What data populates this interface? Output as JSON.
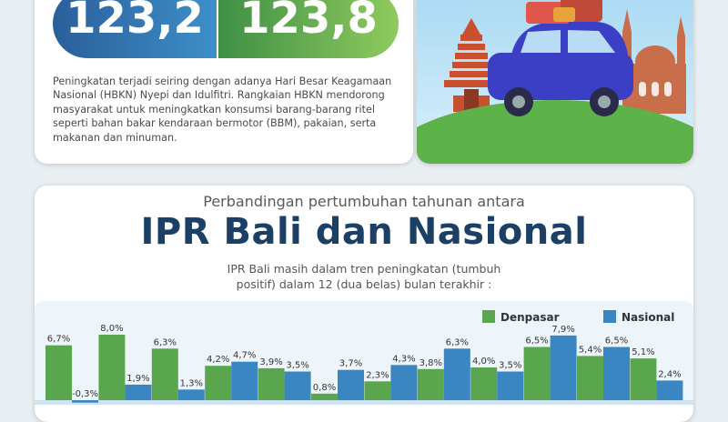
{
  "summary": {
    "value_left": "123,2",
    "value_right": "123,8",
    "description": "Peningkatan terjadi seiring dengan adanya Hari Besar Keagamaan Nasional (HBKN) Nyepi dan Idulfitri. Rangkaian HBKN mendorong masyarakat untuk meningkatkan konsumsi barang-barang ritel seperti bahan bakar kendaraan bermotor (BBM), pakaian, serta makanan dan minuman."
  },
  "illustration": {
    "icon": "travel-car-icon"
  },
  "comparison": {
    "subtitle": "Perbandingan pertumbuhan tahunan antara",
    "title": "IPR Bali dan Nasional",
    "note": "IPR Bali masih dalam tren peningkatan (tumbuh positif) dalam 12 (dua belas) bulan terakhir :"
  },
  "colors": {
    "denpasar": "#5aa64f",
    "nasional": "#3a86c2",
    "value_left_bg": "#3470aa",
    "value_right_bg": "#6fb455",
    "title": "#1c3f66"
  },
  "chart_data": {
    "type": "bar",
    "series": [
      {
        "name": "Denpasar",
        "values": [
          6.7,
          8.0,
          6.3,
          4.2,
          3.9,
          0.8,
          2.3,
          3.8,
          4.0,
          6.5,
          5.4,
          5.1
        ]
      },
      {
        "name": "Nasional",
        "values": [
          -0.3,
          1.9,
          1.3,
          4.7,
          3.5,
          3.7,
          4.3,
          6.3,
          3.5,
          7.9,
          6.5,
          2.4
        ]
      }
    ],
    "value_labels": {
      "Denpasar": [
        "6,7%",
        "8,0%",
        "6,3%",
        "4,2%",
        "3,9%",
        "0,8%",
        "2,3%",
        "3,8%",
        "4,0%",
        "6,5%",
        "5,4%",
        "5,1%"
      ],
      "Nasional": [
        "-0,3%",
        "1,9%",
        "1,3%",
        "4,7%",
        "3,5%",
        "3,7%",
        "4,3%",
        "6,3%",
        "3,5%",
        "7,9%",
        "6,5%",
        "2,4%"
      ]
    },
    "legend_position": "top-right",
    "grid": false
  }
}
